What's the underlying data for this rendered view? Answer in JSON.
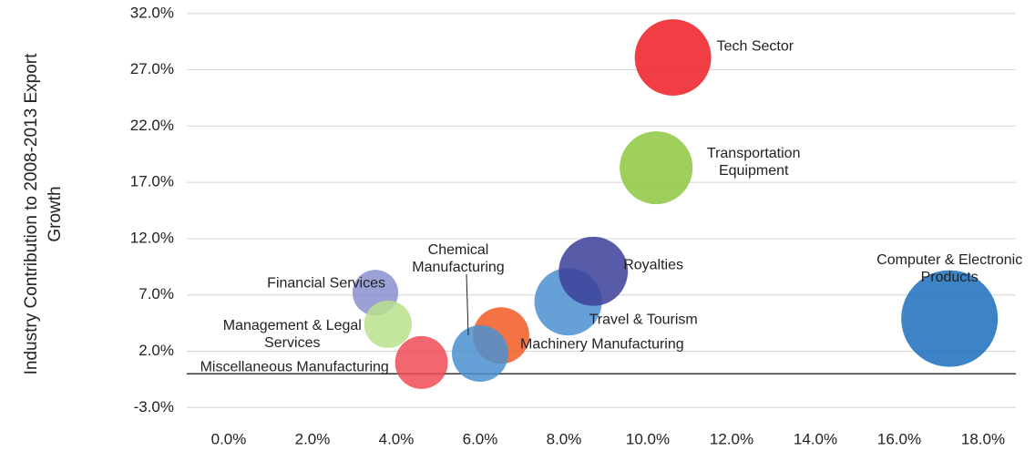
{
  "chart_data": {
    "type": "bubble",
    "y_label": "Industry Contribution to 2008-2013 Export Growth",
    "xlim": [
      -1,
      19
    ],
    "ylim": [
      -5,
      33.2
    ],
    "xticks": [
      {
        "value": 0,
        "label": "0.0%"
      },
      {
        "value": 2,
        "label": "2.0%"
      },
      {
        "value": 4,
        "label": "4.0%"
      },
      {
        "value": 6,
        "label": "6.0%"
      },
      {
        "value": 8,
        "label": "8.0%"
      },
      {
        "value": 10,
        "label": "10.0%"
      },
      {
        "value": 12,
        "label": "12.0%"
      },
      {
        "value": 14,
        "label": "14.0%"
      },
      {
        "value": 16,
        "label": "16.0%"
      },
      {
        "value": 18,
        "label": "18.0%"
      }
    ],
    "yticks": [
      {
        "value": -3,
        "label": "-3.0%"
      },
      {
        "value": 2,
        "label": "2.0%"
      },
      {
        "value": 7,
        "label": "7.0%"
      },
      {
        "value": 12,
        "label": "12.0%"
      },
      {
        "value": 17,
        "label": "17.0%"
      },
      {
        "value": 22,
        "label": "22.0%"
      },
      {
        "value": 27,
        "label": "27.0%"
      },
      {
        "value": 32,
        "label": "32.0%"
      }
    ],
    "grid": true,
    "series": [
      {
        "name": "Tech Sector",
        "color": "#ee1c25",
        "x": 10.6,
        "y": 28.1,
        "size": 17.6
      },
      {
        "name": "Transportation Equipment",
        "color": "#8dc63f",
        "x": 10.2,
        "y": 18.3,
        "size": 16
      },
      {
        "name": "Computer & Electronic Products",
        "color": "#1b6fbd",
        "x": 17.2,
        "y": 4.9,
        "size": 28.1
      },
      {
        "name": "Travel & Tourism",
        "color": "#4a90d0",
        "x": 8.1,
        "y": 6.4,
        "size": 13.7
      },
      {
        "name": "Royalties",
        "color": "#3b3f99",
        "x": 8.7,
        "y": 9.1,
        "size": 14.4
      },
      {
        "name": "Machinery Manufacturing",
        "color": "#f15a24",
        "x": 6.5,
        "y": 3.4,
        "size": 9.6
      },
      {
        "name": "Chemical Manufacturing",
        "color": "#4a90d0",
        "x": 6.0,
        "y": 1.8,
        "size": 9.6
      },
      {
        "name": "Financial Services",
        "color": "#8a8fd0",
        "x": 3.5,
        "y": 7.2,
        "size": 6.3
      },
      {
        "name": "Management & Legal Services",
        "color": "#b8e08d",
        "x": 3.8,
        "y": 4.4,
        "size": 6.8
      },
      {
        "name": "Miscellaneous Manufacturing",
        "color": "#ef4b56",
        "x": 4.6,
        "y": 1.0,
        "size": 8.4
      }
    ]
  }
}
